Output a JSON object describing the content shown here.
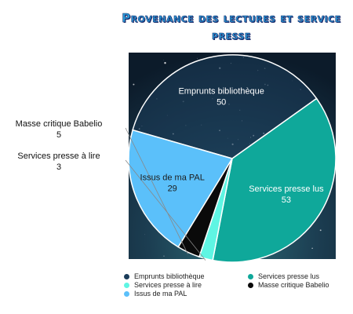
{
  "chart_data": {
    "type": "pie",
    "title": "Provenance des lectures et service presse",
    "slices": [
      {
        "label": "Emprunts bibliothèque",
        "value": 50,
        "color": "#1b3d5a",
        "label_color": "#ffffff",
        "placement": "inside"
      },
      {
        "label": "Services presse lus",
        "value": 53,
        "color": "#0fa89a",
        "label_color": "#ffffff",
        "placement": "inside"
      },
      {
        "label": "Services presse à lire",
        "value": 3,
        "color": "#5ff5e3",
        "label_color": "#111111",
        "placement": "outside"
      },
      {
        "label": "Masse critique Babelio",
        "value": 5,
        "color": "#0a0a0a",
        "label_color": "#111111",
        "placement": "outside"
      },
      {
        "label": "Issus de ma PAL",
        "value": 29,
        "color": "#5bc0fa",
        "label_color": "#1b1b1b",
        "placement": "inside"
      }
    ],
    "legend": {
      "placement": "bottom",
      "items": [
        {
          "label": "Emprunts bibliothèque",
          "color": "#1b3d5a"
        },
        {
          "label": "Services presse lus",
          "color": "#0fa89a"
        },
        {
          "label": "Services presse à lire",
          "color": "#5ff5e3"
        },
        {
          "label": "Masse critique Babelio",
          "color": "#0a0a0a"
        },
        {
          "label": "Issus de ma PAL",
          "color": "#5bc0fa"
        }
      ]
    },
    "background": "starry night sky"
  }
}
